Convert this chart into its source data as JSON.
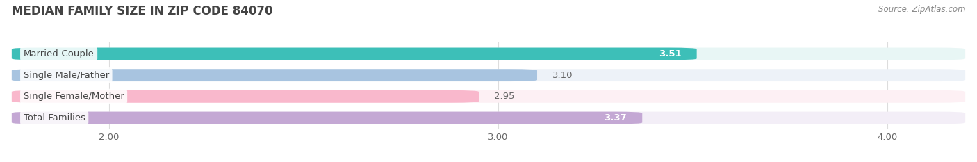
{
  "title": "MEDIAN FAMILY SIZE IN ZIP CODE 84070",
  "source": "Source: ZipAtlas.com",
  "categories": [
    "Married-Couple",
    "Single Male/Father",
    "Single Female/Mother",
    "Total Families"
  ],
  "values": [
    3.51,
    3.1,
    2.95,
    3.37
  ],
  "bar_colors": [
    "#3dbfb8",
    "#a8c4e0",
    "#f9b8cc",
    "#c4a8d4"
  ],
  "bar_bg_colors": [
    "#e8f6f5",
    "#edf2f8",
    "#fdf0f4",
    "#f3eef7"
  ],
  "value_on_bar": [
    true,
    false,
    false,
    true
  ],
  "value_colors_on": [
    "white",
    "white"
  ],
  "value_colors_off": [
    "#777777",
    "#777777"
  ],
  "xlim": [
    1.75,
    4.2
  ],
  "xticks": [
    2.0,
    3.0,
    4.0
  ],
  "xtick_labels": [
    "2.00",
    "3.00",
    "4.00"
  ],
  "bar_height": 0.58,
  "label_fontsize": 9.5,
  "value_fontsize": 9.5,
  "title_fontsize": 12,
  "source_fontsize": 8.5,
  "background_color": "#ffffff",
  "grid_color": "#dddddd",
  "text_color": "#444444",
  "source_color": "#888888"
}
